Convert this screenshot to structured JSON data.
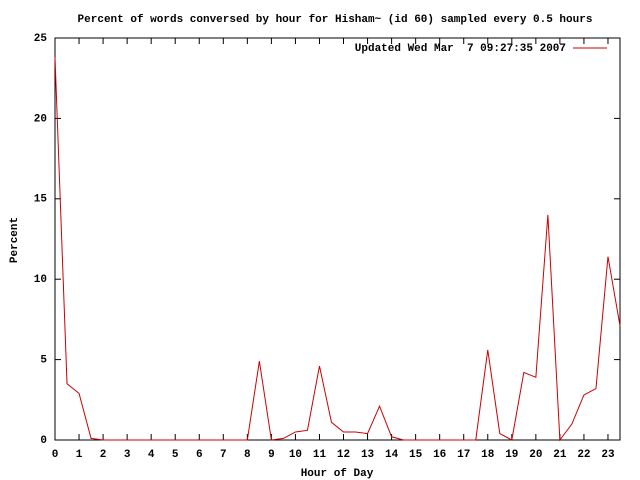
{
  "chart_data": {
    "type": "line",
    "title": "Percent of words conversed by hour for Hisham~ (id 60) sampled every 0.5 hours",
    "xlabel": "Hour of Day",
    "ylabel": "Percent",
    "x": [
      0,
      0.5,
      1,
      1.5,
      2,
      2.5,
      3,
      3.5,
      4,
      4.5,
      5,
      5.5,
      6,
      6.5,
      7,
      7.5,
      8,
      8.5,
      9,
      9.5,
      10,
      10.5,
      11,
      11.5,
      12,
      12.5,
      13,
      13.5,
      14,
      14.5,
      15,
      15.5,
      16,
      16.5,
      17,
      17.5,
      18,
      18.5,
      19,
      19.5,
      20,
      20.5,
      21,
      21.5,
      22,
      22.5,
      23,
      23.5
    ],
    "series": [
      {
        "name": "Updated Wed Mar  7 09:27:35 2007",
        "color": "#cc0000",
        "values": [
          23.8,
          3.5,
          2.9,
          0.1,
          0,
          0,
          0,
          0,
          0,
          0,
          0,
          0,
          0,
          0,
          0,
          0,
          0,
          4.9,
          0,
          0.1,
          0.5,
          0.6,
          4.6,
          1.1,
          0.5,
          0.5,
          0.4,
          2.1,
          0.2,
          0,
          0,
          0,
          0,
          0,
          0,
          0,
          5.6,
          0.4,
          0,
          4.2,
          3.9,
          14.0,
          0,
          1.0,
          2.8,
          3.2,
          11.4,
          7.1
        ]
      }
    ],
    "xlim": [
      0,
      23.5
    ],
    "ylim": [
      0,
      25
    ],
    "xticks": [
      0,
      1,
      2,
      3,
      4,
      5,
      6,
      7,
      8,
      9,
      10,
      11,
      12,
      13,
      14,
      15,
      16,
      17,
      18,
      19,
      20,
      21,
      22,
      23
    ],
    "yticks": [
      0,
      5,
      10,
      15,
      20,
      25
    ],
    "legend": "top-right"
  }
}
